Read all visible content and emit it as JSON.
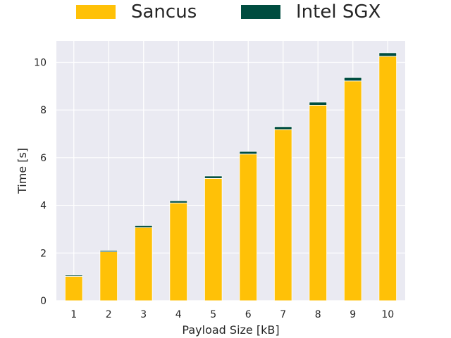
{
  "chart_data": {
    "type": "bar",
    "stacked": true,
    "categories": [
      "1",
      "2",
      "3",
      "4",
      "5",
      "6",
      "7",
      "8",
      "9",
      "10"
    ],
    "series": [
      {
        "name": "Sancus",
        "color": "#FFC107",
        "values": [
          1.02,
          2.05,
          3.07,
          4.1,
          5.13,
          6.15,
          7.18,
          8.2,
          9.22,
          10.25
        ]
      },
      {
        "name": "Intel SGX",
        "color": "#004D40",
        "values": [
          0.05,
          0.06,
          0.08,
          0.09,
          0.1,
          0.11,
          0.12,
          0.13,
          0.14,
          0.15
        ]
      }
    ],
    "xlabel": "Payload Size [kB]",
    "ylabel": "Time [s]",
    "ylim": [
      0,
      10.9
    ],
    "yticks": [
      0,
      2,
      4,
      6,
      8,
      10
    ],
    "grid": true,
    "legend_position": "top-center",
    "background": "#EAEAF2"
  }
}
